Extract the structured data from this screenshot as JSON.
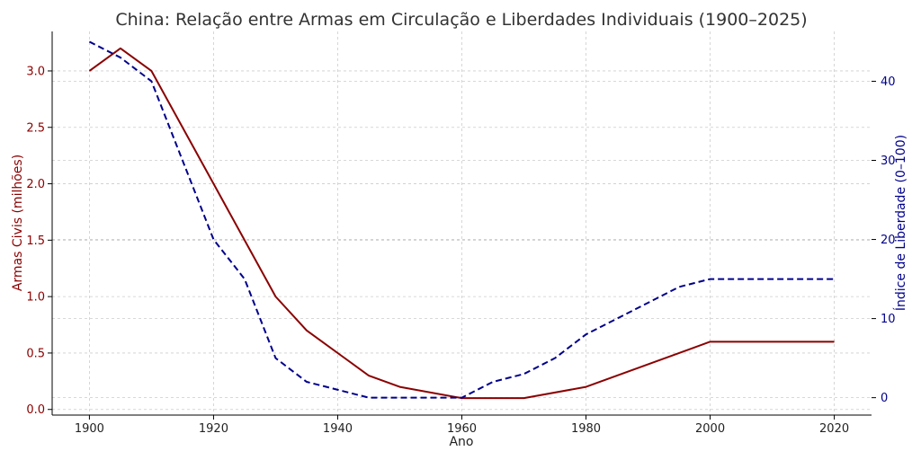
{
  "chart_data": {
    "type": "line",
    "title": "China: Relação entre Armas em Circulação e Liberdades Individuais (1900–2025)",
    "xlabel": "Ano",
    "ylabel_left": "Armas Civis (milhões)",
    "ylabel_right": "Índice de Liberdade (0–100)",
    "xlim": [
      1894,
      2026
    ],
    "ylim_left": [
      -0.05,
      3.35
    ],
    "ylim_right": [
      -2.2,
      46.3
    ],
    "x_ticks": [
      1900,
      1920,
      1940,
      1960,
      1980,
      2000,
      2020
    ],
    "y_ticks_left": [
      "0.0",
      "0.5",
      "1.0",
      "1.5",
      "2.0",
      "2.5",
      "3.0"
    ],
    "y_ticks_right": [
      "0",
      "10",
      "20",
      "30",
      "40"
    ],
    "grid": true,
    "colors": {
      "left": "#8b0000",
      "right": "#00008b",
      "axis": "#000000"
    },
    "series": [
      {
        "axis": "left",
        "style": "solid",
        "x": [
          1900,
          1905,
          1910,
          1920,
          1930,
          1935,
          1945,
          1950,
          1960,
          1970,
          1980,
          2000,
          2020
        ],
        "values": [
          3.0,
          3.2,
          3.0,
          2.0,
          1.0,
          0.7,
          0.3,
          0.2,
          0.1,
          0.1,
          0.2,
          0.6,
          0.6
        ]
      },
      {
        "axis": "right",
        "style": "dashed",
        "x": [
          1900,
          1905,
          1910,
          1920,
          1925,
          1930,
          1935,
          1945,
          1950,
          1960,
          1965,
          1970,
          1975,
          1980,
          1985,
          1990,
          1995,
          2000,
          2020
        ],
        "values": [
          45,
          43,
          40,
          20,
          15,
          5,
          2,
          0,
          0,
          0,
          2,
          3,
          5,
          8,
          10,
          12,
          14,
          15,
          15
        ]
      }
    ]
  }
}
